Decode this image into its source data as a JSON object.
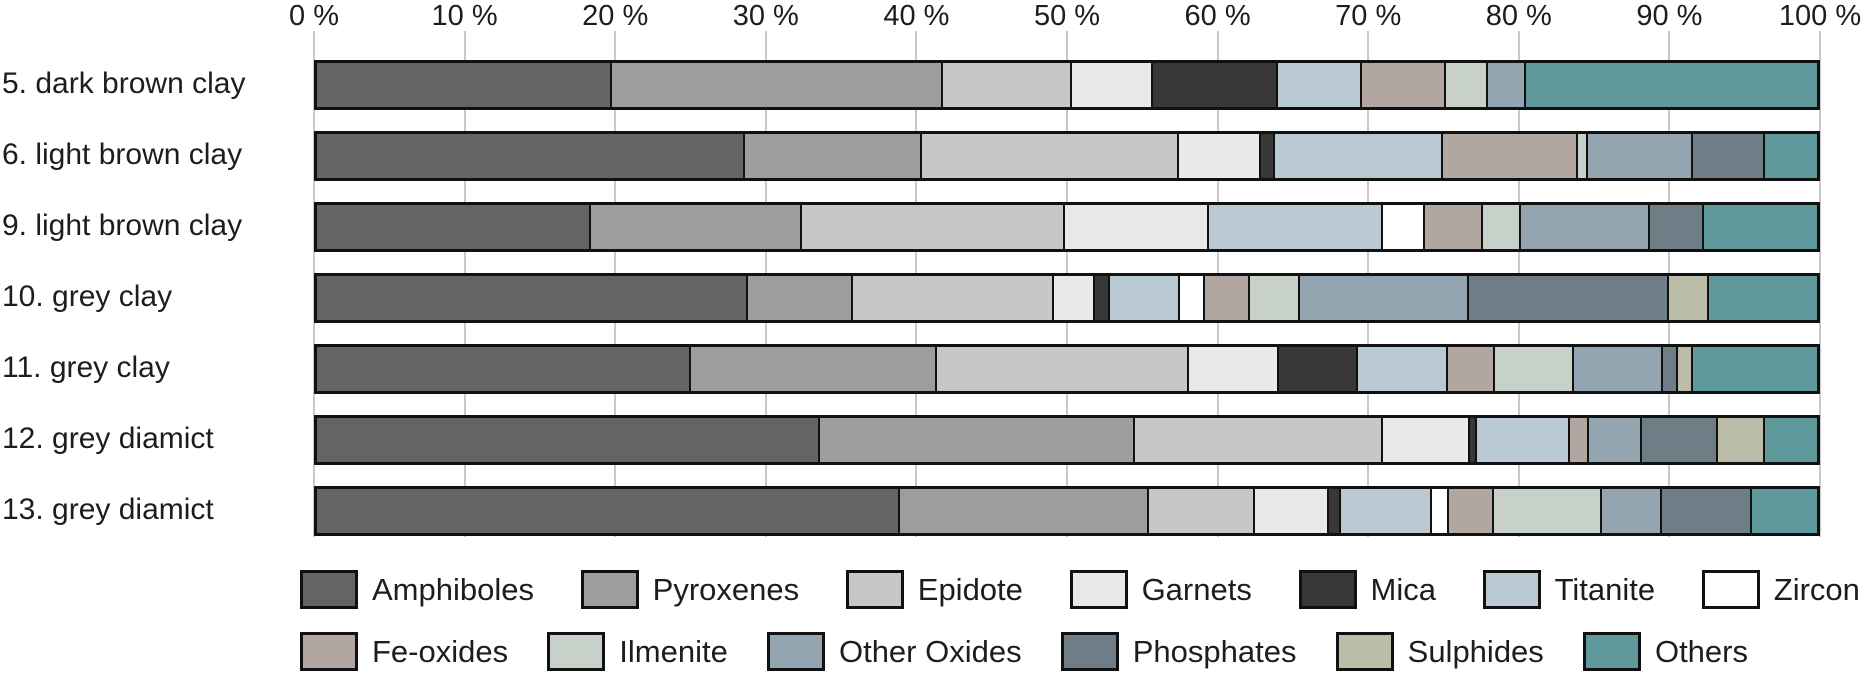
{
  "chart_data": {
    "type": "bar",
    "variant": "horizontal-stacked-100pct",
    "title": "",
    "xlabel": "",
    "ylabel": "",
    "xlim": [
      0,
      100
    ],
    "grid": true,
    "axis_position": "top",
    "tick_labels": [
      "0 %",
      "10 %",
      "20 %",
      "30 %",
      "40 %",
      "50 %",
      "60 %",
      "70 %",
      "80 %",
      "90 %",
      "100 %"
    ],
    "tick_values": [
      0,
      10,
      20,
      30,
      40,
      50,
      60,
      70,
      80,
      90,
      100
    ],
    "legend_position": "bottom",
    "minerals": [
      {
        "name": "Amphiboles",
        "color": "#646464"
      },
      {
        "name": "Pyroxenes",
        "color": "#9d9d9d"
      },
      {
        "name": "Epidote",
        "color": "#c7c7c7"
      },
      {
        "name": "Garnets",
        "color": "#e9e9e9"
      },
      {
        "name": "Mica",
        "color": "#383838"
      },
      {
        "name": "Titanite",
        "color": "#b9c9d4"
      },
      {
        "name": "Zircon",
        "color": "#ffffff"
      },
      {
        "name": "Fe-oxides",
        "color": "#b2a6a0"
      },
      {
        "name": "Ilmenite",
        "color": "#c7d1c9"
      },
      {
        "name": "Other Oxides",
        "color": "#92a5b1"
      },
      {
        "name": "Phosphates",
        "color": "#6f7d86"
      },
      {
        "name": "Sulphides",
        "color": "#bcbda9"
      },
      {
        "name": "Others",
        "color": "#5f999b"
      }
    ],
    "legend_rows": [
      [
        0,
        1,
        2,
        3,
        4,
        5,
        6
      ],
      [
        7,
        8,
        9,
        10,
        11,
        12
      ]
    ],
    "samples": [
      {
        "label": "5. dark brown clay",
        "values": [
          19.5,
          22.1,
          8.6,
          5.4,
          8.3,
          5.6,
          0,
          5.6,
          2.8,
          2.6,
          0,
          0,
          19.5
        ]
      },
      {
        "label": "6. light brown clay",
        "values": [
          28.4,
          11.8,
          17.1,
          5.5,
          0.9,
          11.2,
          0,
          9.0,
          0.7,
          7.0,
          4.8,
          0,
          3.6
        ]
      },
      {
        "label": "9. light brown clay",
        "values": [
          18.1,
          14.1,
          17.5,
          9.6,
          0,
          11.6,
          2.8,
          3.9,
          2.5,
          8.6,
          3.6,
          0,
          7.7
        ]
      },
      {
        "label": "10. grey clay",
        "values": [
          28.6,
          7.0,
          13.4,
          2.7,
          1.0,
          4.7,
          1.7,
          3.0,
          3.3,
          11.3,
          13.3,
          2.7,
          7.3
        ]
      },
      {
        "label": "11. grey clay",
        "values": [
          24.8,
          16.4,
          16.8,
          6.0,
          5.3,
          6.0,
          0,
          3.1,
          5.3,
          5.9,
          1.0,
          1.0,
          8.4
        ]
      },
      {
        "label": "12. grey diamict",
        "values": [
          33.4,
          21.0,
          16.5,
          5.8,
          0.5,
          6.2,
          0,
          1.3,
          0,
          3.5,
          5.1,
          3.1,
          3.6
        ]
      },
      {
        "label": "13. grey diamict",
        "values": [
          38.7,
          16.6,
          7.1,
          4.9,
          0.8,
          6.1,
          1.1,
          3.0,
          7.2,
          4.0,
          6.0,
          0,
          4.5
        ]
      }
    ],
    "colors": {
      "grid": "#c9c9c9",
      "bar_border": "#111111",
      "text": "#1d1d1b",
      "background": "#ffffff"
    }
  }
}
